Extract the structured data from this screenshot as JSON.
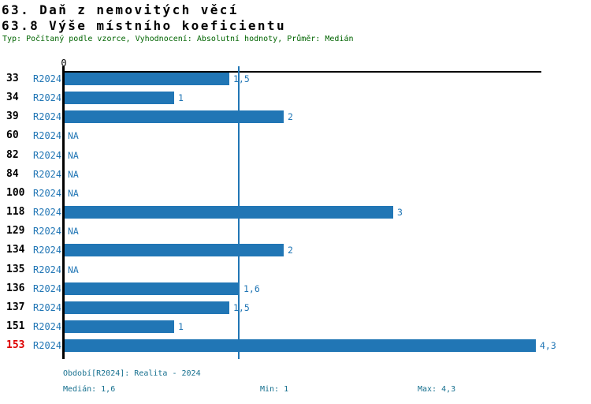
{
  "header": {
    "title_line1": "63. Daň z nemovitých věcí",
    "title_line2": "63.8 Výše místního koeficientu",
    "meta": "Typ: Počítaný podle vzorce, Vyhodnocení: Absolutní hodnoty, Průměr: Medián"
  },
  "chart_data": {
    "type": "bar",
    "orientation": "horizontal",
    "title": "63.8 Výše místního koeficientu",
    "series_name": "R2024",
    "categories": [
      "33",
      "34",
      "39",
      "60",
      "82",
      "84",
      "100",
      "118",
      "129",
      "134",
      "135",
      "136",
      "137",
      "151",
      "153"
    ],
    "values": [
      1.5,
      1,
      2,
      null,
      null,
      null,
      null,
      3,
      null,
      2,
      null,
      1.6,
      1.5,
      1,
      4.3
    ],
    "value_labels": [
      "1,5",
      "1",
      "2",
      "NA",
      "NA",
      "NA",
      "NA",
      "3",
      "NA",
      "2",
      "NA",
      "1,6",
      "1,5",
      "1",
      "4,3"
    ],
    "highlighted_category": "153",
    "median_value": 1.6,
    "axis": {
      "zero_label": "0",
      "xlim": [
        0,
        4.37
      ],
      "grid": false
    },
    "legend_position": "none",
    "stats": {
      "median": "1,6",
      "min": "1",
      "max": "4,3"
    }
  },
  "footer": {
    "period_info": "Období[R2024]: Realita - 2024",
    "median_label": "Medián: 1,6",
    "min_label": "Min: 1",
    "max_label": "Max: 4,3"
  },
  "colors": {
    "bar": "#2176b5",
    "accent_text": "#2176b5",
    "meta_text": "#006400",
    "footer_text": "#17708f",
    "highlight_text": "#dd0000",
    "axis": "#000000"
  }
}
